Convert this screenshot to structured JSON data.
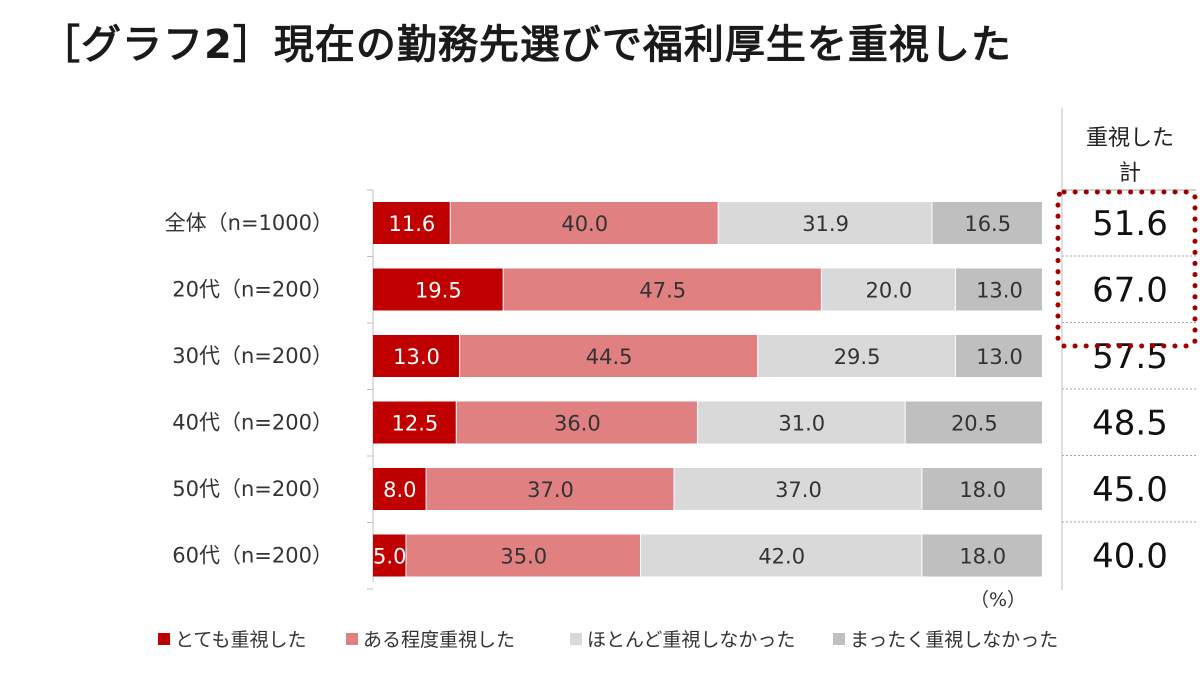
{
  "title": "［グラフ2］現在の勤務先選びで福利厚生を重視した",
  "chart_data": {
    "type": "bar",
    "orientation": "horizontal",
    "stacked": true,
    "title": "［グラフ2］現在の勤務先選びで福利厚生を重視した",
    "unit": "（%）",
    "categories": [
      "全体（n=1000）",
      "20代（n=200）",
      "30代（n=200）",
      "40代（n=200）",
      "50代（n=200）",
      "60代（n=200）"
    ],
    "series": [
      {
        "name": "とても重視した",
        "color": "#c00000",
        "text_color": "#ffffff",
        "values": [
          11.6,
          19.5,
          13.0,
          12.5,
          8.0,
          5.0
        ]
      },
      {
        "name": "ある程度重視した",
        "color": "#e08080",
        "text_color": "#333333",
        "values": [
          40.0,
          47.5,
          44.5,
          36.0,
          37.0,
          35.0
        ]
      },
      {
        "name": "ほとんど重視しなかった",
        "color": "#d9d9d9",
        "text_color": "#333333",
        "values": [
          31.9,
          20.0,
          29.5,
          31.0,
          37.0,
          42.0
        ]
      },
      {
        "name": "まったく重視しなかった",
        "color": "#bfbfbf",
        "text_color": "#333333",
        "values": [
          16.5,
          13.0,
          13.0,
          20.5,
          18.0,
          18.0
        ]
      }
    ],
    "xlim": [
      0,
      100
    ],
    "totals": {
      "header_line1": "重視した",
      "header_line2": "計",
      "values": [
        "51.6",
        "67.0",
        "57.5",
        "48.5",
        "45.0",
        "40.0"
      ],
      "highlight_color": "#a00000"
    },
    "legend_position": "bottom-left"
  }
}
